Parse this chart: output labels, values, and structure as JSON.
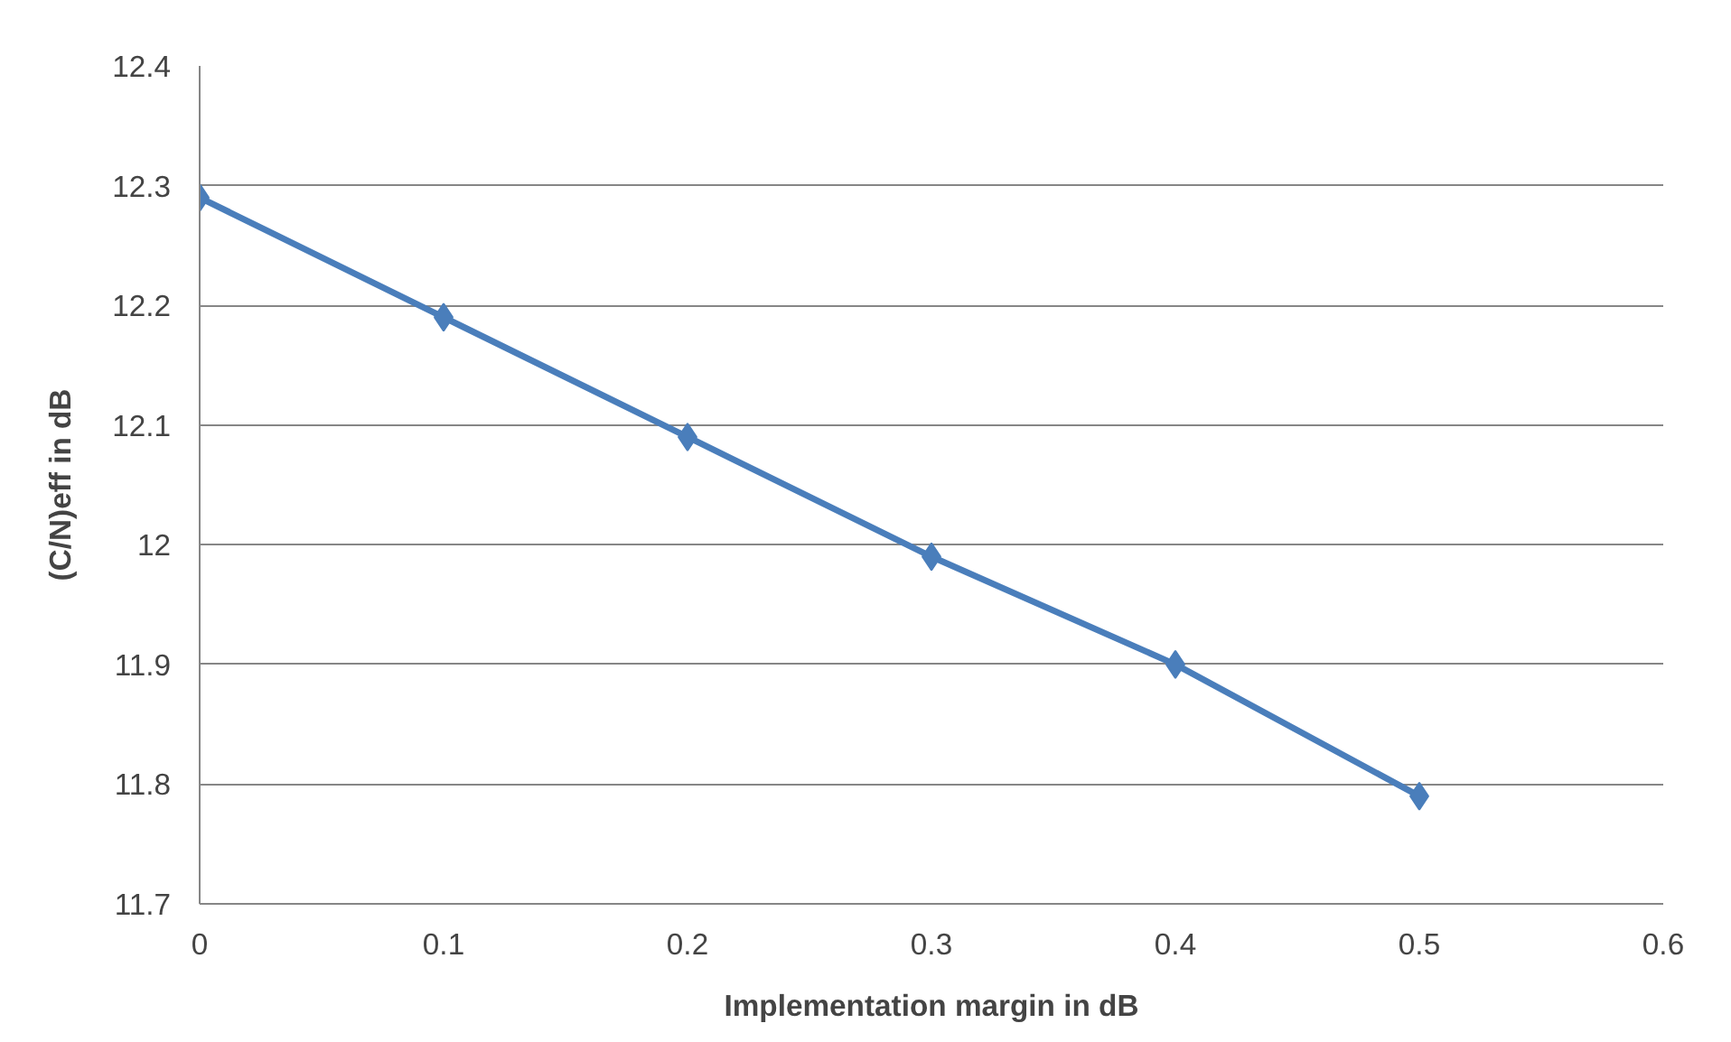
{
  "chart_data": {
    "type": "line",
    "xlabel": "Implementation margin in dB",
    "ylabel": "(C/N)eff in dB",
    "x": [
      0,
      0.1,
      0.2,
      0.3,
      0.4,
      0.5
    ],
    "series": [
      {
        "color": "#4a7ebb",
        "values": [
          12.29,
          12.19,
          12.09,
          11.99,
          11.9,
          11.79
        ]
      }
    ],
    "xlim": [
      0,
      0.6
    ],
    "xticks": [
      0,
      0.1,
      0.2,
      0.3,
      0.4,
      0.5,
      0.6
    ],
    "ylim": [
      11.7,
      12.4
    ],
    "yticks": [
      11.7,
      11.8,
      11.9,
      12,
      12.1,
      12.2,
      12.3,
      12.4
    ],
    "grid": "y",
    "marker": "diamond",
    "line_style": "solid"
  }
}
